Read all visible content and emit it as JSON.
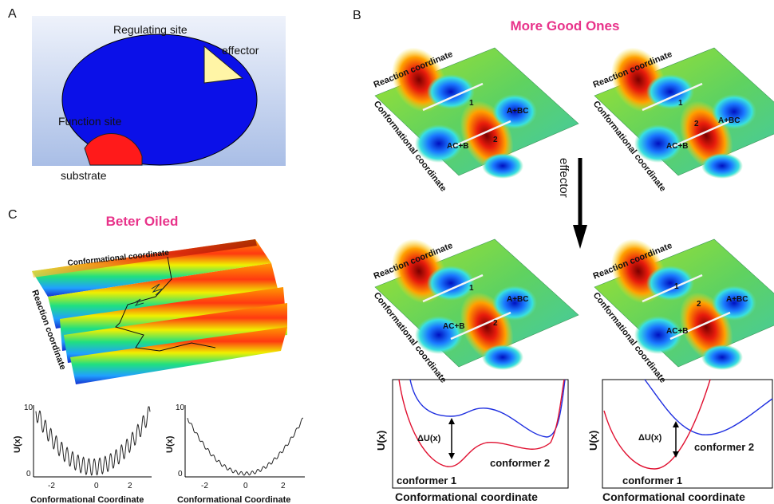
{
  "panels": {
    "a": {
      "letter": "A",
      "regulating_site": "Regulating site",
      "effector": "effector",
      "function_site": "Function site",
      "substrate": "substrate"
    },
    "b": {
      "letter": "B",
      "title": "More Good Ones",
      "arrow_label": "effector",
      "surface_labels": {
        "reaction": "Reaction coordinate",
        "conformational": "Conformational coordinate",
        "ac_b": "AC+B",
        "a_bc": "A+BC",
        "one": "1",
        "two": "2"
      },
      "plot_left": {
        "ylabel": "U(x)",
        "delta": "ΔU(x)",
        "conformer1": "conformer 1",
        "conformer2": "conformer 2",
        "xlabel": "Conformational coordinate"
      },
      "plot_right": {
        "ylabel": "U(x)",
        "delta": "ΔU(x)",
        "conformer1": "conformer 1",
        "conformer2": "conformer 2",
        "xlabel": "Conformational coordinate"
      }
    },
    "c": {
      "letter": "C",
      "title": "Beter Oiled",
      "surface_conf": "Conformational coordinate",
      "surface_react": "Reaction coordinate",
      "plot1": {
        "ylabel": "U(x)",
        "xlabel": "Conformational Coordinate",
        "yticks": [
          "10",
          "0"
        ],
        "xticks": [
          "-2",
          "0",
          "2"
        ]
      },
      "plot2": {
        "ylabel": "U(x)",
        "xlabel": "Conformational Coordinate",
        "yticks": [
          "10",
          "0"
        ],
        "xticks": [
          "-2",
          "0",
          "2"
        ]
      }
    }
  },
  "colors": {
    "accent_pink": "#e8338a",
    "blue_disk": "#0b10e8",
    "effector_fill": "#fff5a6",
    "substrate_fill": "#ff1a1a"
  }
}
